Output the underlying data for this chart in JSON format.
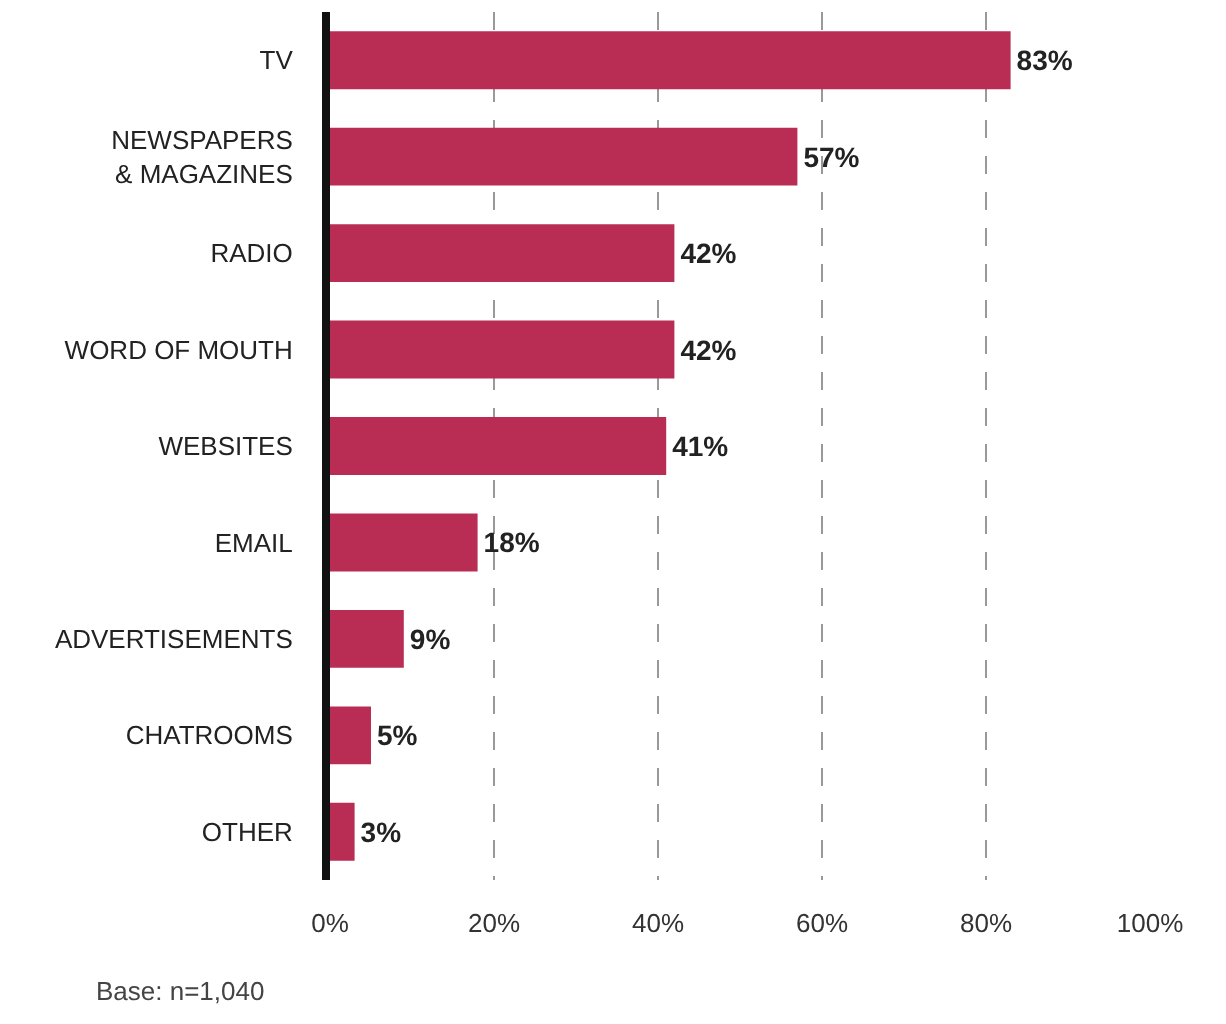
{
  "chart_data": {
    "type": "bar",
    "orientation": "horizontal",
    "categories": [
      "TV",
      "NEWSPAPERS\n& MAGAZINES",
      "RADIO",
      "WORD OF MOUTH",
      "WEBSITES",
      "EMAIL",
      "ADVERTISEMENTS",
      "CHATROOMS",
      "OTHER"
    ],
    "values": [
      83,
      57,
      42,
      42,
      41,
      18,
      9,
      5,
      3
    ],
    "value_labels": [
      "83%",
      "57%",
      "42%",
      "42%",
      "41%",
      "18%",
      "9%",
      "5%",
      "3%"
    ],
    "color": "#b92d55",
    "xlim": [
      0,
      100
    ],
    "xticks": [
      {
        "value": 0,
        "label": "0%"
      },
      {
        "value": 20,
        "label": "20%"
      },
      {
        "value": 40,
        "label": "40%"
      },
      {
        "value": 60,
        "label": "60%"
      },
      {
        "value": 80,
        "label": "80%"
      },
      {
        "value": 100,
        "label": "100%"
      }
    ],
    "grid": "x",
    "annotations": [
      "Base: n=1,040"
    ]
  }
}
